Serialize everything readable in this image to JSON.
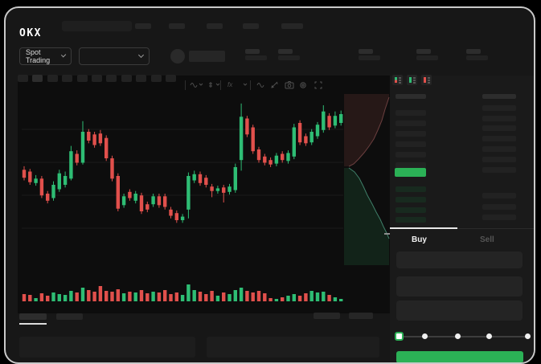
{
  "brand": {
    "logo_text": "OKX"
  },
  "header": {
    "nav_placeholder_count": 4,
    "nav_right_placeholder_count": 1
  },
  "market_bar": {
    "market_selector_label": "Spot Trading",
    "pair_selector_value": "",
    "stat_pair_count": 5
  },
  "chart_toolbar": {
    "timeframe_button_count": 11,
    "active_timeframe_index": 1,
    "icons": [
      "line-style-icon",
      "candle-style-icon",
      "fx-indicator-icon",
      "chevron-down-icon",
      "wave-icon",
      "pencil-icon",
      "camera-icon",
      "gear-icon",
      "fullscreen-icon"
    ]
  },
  "order_book": {
    "view_toggle_icons": [
      "book-both-icon",
      "book-bids-icon",
      "book-asks-icon"
    ],
    "ask_row_count": 6,
    "bid_row_count": 4,
    "right_upper_row_count": 7,
    "right_lower_row_count": 3,
    "last_price_color": "#2bb156"
  },
  "trade_form": {
    "buy_tab_label": "Buy",
    "sell_tab_label": "Sell",
    "input_count": 3,
    "slider_stop_count": 5,
    "buy_button_color": "#2bb156"
  },
  "bottom_bar": {
    "tab_count": 2,
    "active_tab_index": 0,
    "right_placeholder_count": 2,
    "panel_count": 2
  },
  "chart_data": {
    "type": "candlestick+volume+depth",
    "title": "",
    "xlabel": "",
    "ylabel": "",
    "grid": true,
    "price_domain": [
      30,
      180
    ],
    "colors": {
      "up": "#2ebd74",
      "down": "#e1504c",
      "grid": "#1c1c1c",
      "depth_ask_line": "#6b3f3f",
      "depth_ask_fill": "#261817",
      "depth_bid_line": "#3f7e68",
      "depth_bid_fill": "#122319"
    },
    "candles": [
      [
        97,
        101,
        85,
        88
      ],
      [
        95,
        98,
        80,
        83
      ],
      [
        82,
        91,
        79,
        87
      ],
      [
        87,
        90,
        65,
        68
      ],
      [
        70,
        73,
        59,
        62
      ],
      [
        65,
        84,
        62,
        80
      ],
      [
        75,
        97,
        72,
        93
      ],
      [
        80,
        95,
        77,
        90
      ],
      [
        87,
        124,
        85,
        118
      ],
      [
        115,
        119,
        102,
        105
      ],
      [
        105,
        152,
        103,
        140
      ],
      [
        140,
        143,
        127,
        130
      ],
      [
        137,
        140,
        122,
        125
      ],
      [
        138,
        142,
        124,
        127
      ],
      [
        133,
        136,
        107,
        110
      ],
      [
        110,
        113,
        84,
        87
      ],
      [
        90,
        93,
        50,
        53
      ],
      [
        57,
        70,
        54,
        67
      ],
      [
        72,
        75,
        62,
        65
      ],
      [
        62,
        73,
        59,
        70
      ],
      [
        68,
        71,
        47,
        50
      ],
      [
        58,
        61,
        49,
        52
      ],
      [
        58,
        70,
        55,
        67
      ],
      [
        67,
        70,
        54,
        57
      ],
      [
        67,
        70,
        52,
        55
      ],
      [
        52,
        55,
        42,
        45
      ],
      [
        48,
        51,
        37,
        40
      ],
      [
        40,
        47,
        37,
        44
      ],
      [
        52,
        94,
        42,
        90
      ],
      [
        85,
        96,
        82,
        92
      ],
      [
        92,
        95,
        79,
        82
      ],
      [
        88,
        91,
        77,
        80
      ],
      [
        78,
        81,
        66,
        73
      ],
      [
        73,
        79,
        70,
        76
      ],
      [
        77,
        80,
        60,
        71
      ],
      [
        72,
        81,
        69,
        78
      ],
      [
        74,
        104,
        71,
        100
      ],
      [
        108,
        172,
        96,
        157
      ],
      [
        155,
        158,
        134,
        137
      ],
      [
        145,
        148,
        115,
        118
      ],
      [
        120,
        123,
        105,
        108
      ],
      [
        112,
        115,
        102,
        105
      ],
      [
        108,
        111,
        100,
        103
      ],
      [
        104,
        116,
        101,
        113
      ],
      [
        115,
        118,
        105,
        108
      ],
      [
        107,
        119,
        104,
        116
      ],
      [
        112,
        149,
        109,
        145
      ],
      [
        150,
        153,
        125,
        128
      ],
      [
        135,
        138,
        124,
        127
      ],
      [
        128,
        143,
        125,
        140
      ],
      [
        135,
        151,
        132,
        148
      ],
      [
        142,
        170,
        139,
        163
      ],
      [
        158,
        161,
        142,
        145
      ],
      [
        147,
        163,
        144,
        158
      ],
      [
        150,
        164,
        147,
        160
      ]
    ],
    "volumes": [
      9,
      8,
      4,
      10,
      7,
      11,
      9,
      8,
      13,
      11,
      17,
      14,
      12,
      19,
      13,
      12,
      15,
      10,
      12,
      11,
      14,
      10,
      12,
      11,
      14,
      9,
      11,
      8,
      21,
      14,
      12,
      9,
      13,
      7,
      11,
      9,
      14,
      17,
      13,
      11,
      13,
      10,
      4,
      3,
      5,
      7,
      9,
      7,
      10,
      13,
      11,
      12,
      8,
      5,
      3
    ],
    "depth": {
      "ask_points": [
        [
          477,
          111
        ],
        [
          472,
          126
        ],
        [
          468,
          140
        ],
        [
          463,
          152
        ],
        [
          458,
          163
        ],
        [
          452,
          172
        ],
        [
          446,
          180
        ],
        [
          439,
          188
        ],
        [
          433,
          194
        ],
        [
          427,
          197
        ]
      ],
      "bid_points": [
        [
          427,
          199
        ],
        [
          434,
          204
        ],
        [
          440,
          212
        ],
        [
          445,
          222
        ],
        [
          450,
          233
        ],
        [
          456,
          244
        ],
        [
          461,
          254
        ],
        [
          466,
          263
        ],
        [
          470,
          272
        ],
        [
          474,
          280
        ],
        [
          477,
          287
        ]
      ]
    }
  }
}
